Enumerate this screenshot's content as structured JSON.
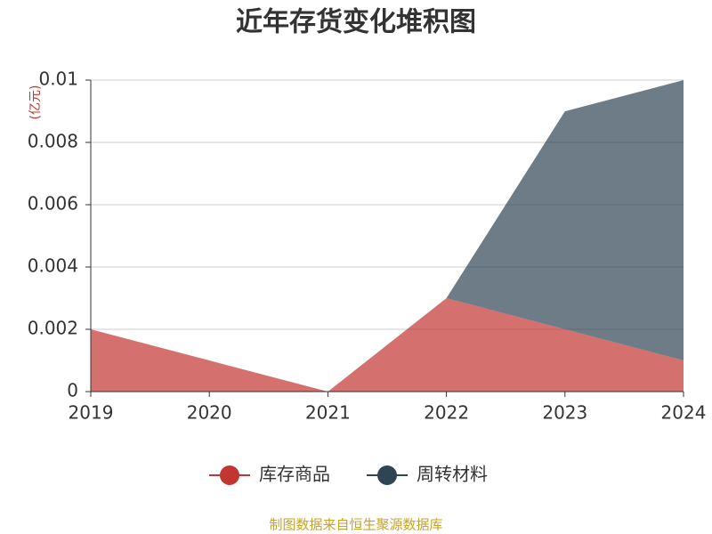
{
  "chart_data": {
    "type": "stacked-area",
    "title": "近年存货变化堆积图",
    "y_unit": "(亿元)",
    "categories": [
      "2019",
      "2020",
      "2021",
      "2022",
      "2023",
      "2024"
    ],
    "series": [
      {
        "name": "库存商品",
        "color": "#c23531",
        "values": [
          0.002,
          0.001,
          0,
          0.003,
          0.002,
          0.001
        ]
      },
      {
        "name": "周转材料",
        "color": "#2f4554",
        "values": [
          0,
          0,
          0,
          0,
          0.007,
          0.009
        ]
      }
    ],
    "ylim": [
      0,
      0.01
    ],
    "yticks": [
      0,
      0.002,
      0.004,
      0.006,
      0.008,
      0.01
    ],
    "grid": true,
    "legend": "bottom",
    "source": "制图数据来自恒生聚源数据库"
  }
}
